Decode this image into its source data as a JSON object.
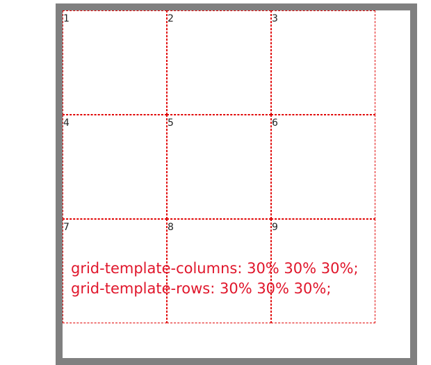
{
  "grid": {
    "cells": [
      "1",
      "2",
      "3",
      "4",
      "5",
      "6",
      "7",
      "8",
      "9"
    ]
  },
  "caption": {
    "line1": "grid-template-columns: 30% 30% 30%;",
    "line2": "grid-template-rows: 30% 30% 30%;"
  },
  "colors": {
    "frame": "#808080",
    "cell_border": "#e00000",
    "caption_text": "#e0162b",
    "cell_text": "#222222"
  }
}
